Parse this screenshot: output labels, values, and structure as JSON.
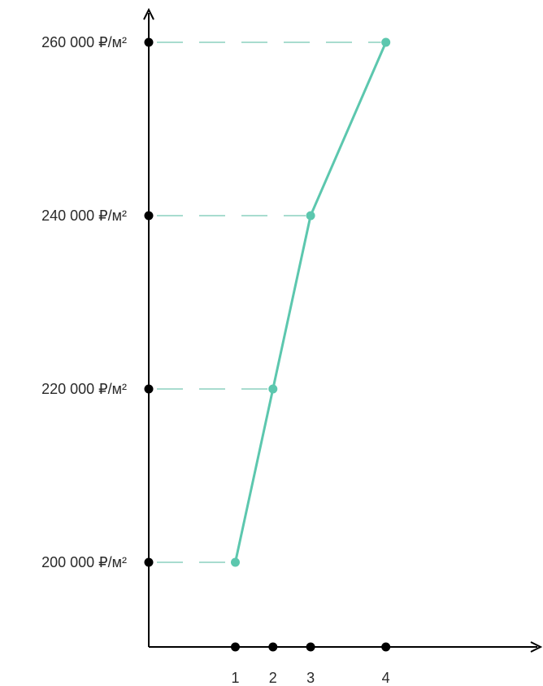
{
  "chart_data": {
    "type": "line",
    "x": [
      1,
      2,
      3,
      4
    ],
    "x_tick_labels": [
      "1",
      "2",
      "3",
      "4"
    ],
    "series": [
      {
        "values": [
          200000,
          220000,
          240000,
          260000
        ]
      }
    ],
    "y_ticks": [
      200000,
      220000,
      240000,
      260000
    ],
    "y_tick_labels": [
      "200 000 ₽/м²",
      "220 000 ₽/м²",
      "240 000 ₽/м²",
      "260 000 ₽/м²"
    ],
    "x_positions": [
      2.3,
      3.3,
      4.3,
      6.3
    ],
    "xlim": [
      0,
      6.8
    ],
    "ylim": [
      190000,
      263500
    ],
    "title": "",
    "xlabel": "",
    "ylabel": "",
    "grid": false,
    "guide_lines": "dashed",
    "colors": {
      "line": "#5cc7ae",
      "axis": "#000000",
      "guide": "#a8dccf",
      "text": "#2a2a2a"
    }
  }
}
